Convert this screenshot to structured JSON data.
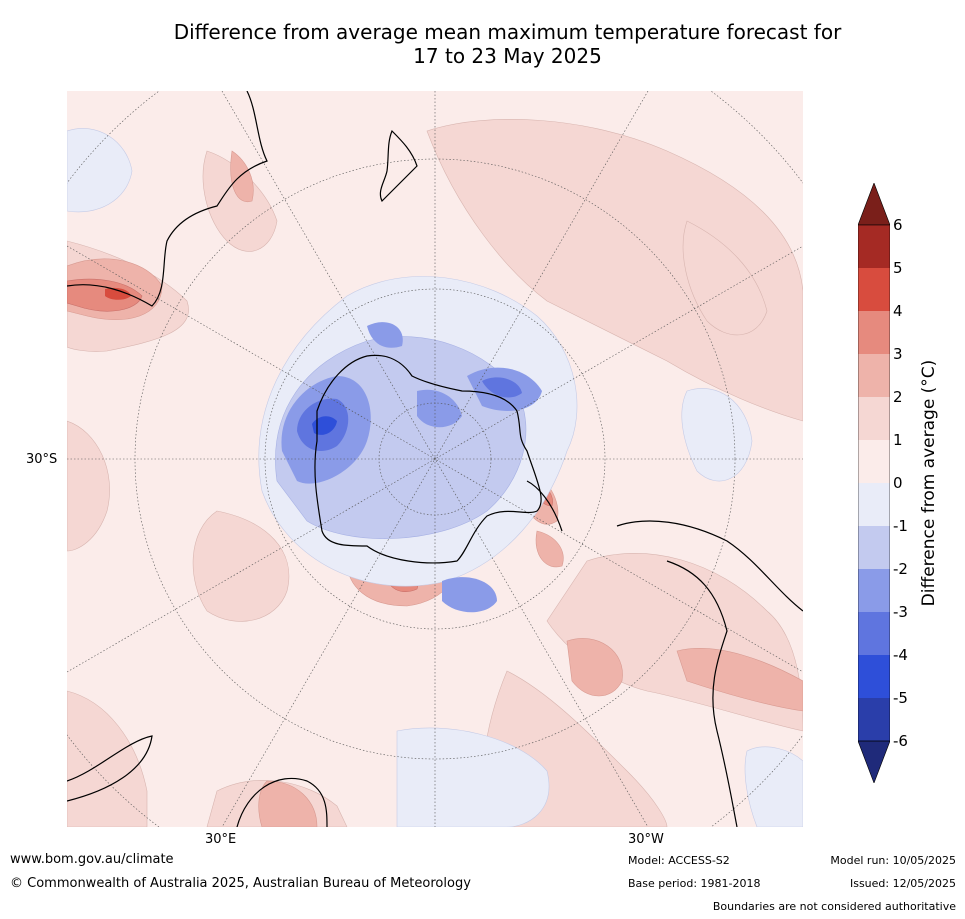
{
  "title_line1": "Difference from average mean maximum temperature forecast for",
  "title_line2": "17 to 23 May 2025",
  "map": {
    "projection": "south polar stereographic",
    "lat_label": "30°S",
    "lon_labels": [
      "30°E",
      "30°W"
    ]
  },
  "colorbar": {
    "label": "Difference from average ($^\\circ$C)",
    "label_display": "Difference from average (°C)",
    "ticks": [
      "6",
      "5",
      "4",
      "3",
      "2",
      "1",
      "0",
      "-1",
      "-2",
      "-3",
      "-4",
      "-5",
      "-6"
    ],
    "colors": [
      "#7a1f1a",
      "#a52a24",
      "#d84c3e",
      "#e68a7e",
      "#eeb3aa",
      "#f5d7d3",
      "#fbecea",
      "#e9ecf8",
      "#c3caef",
      "#8a9be8",
      "#5f75df",
      "#2e4fd9",
      "#2a3eaa",
      "#1f2a7a"
    ]
  },
  "footer": {
    "url": "www.bom.gov.au/climate",
    "copyright": "© Commonwealth of Australia 2025, Australian Bureau of Meteorology",
    "model": "Model: ACCESS-S2",
    "base_period": "Base period: 1981-2018",
    "model_run": "Model run: 10/05/2025",
    "issued": "Issued: 12/05/2025",
    "disclaimer": "Boundaries are not considered authoritative"
  }
}
